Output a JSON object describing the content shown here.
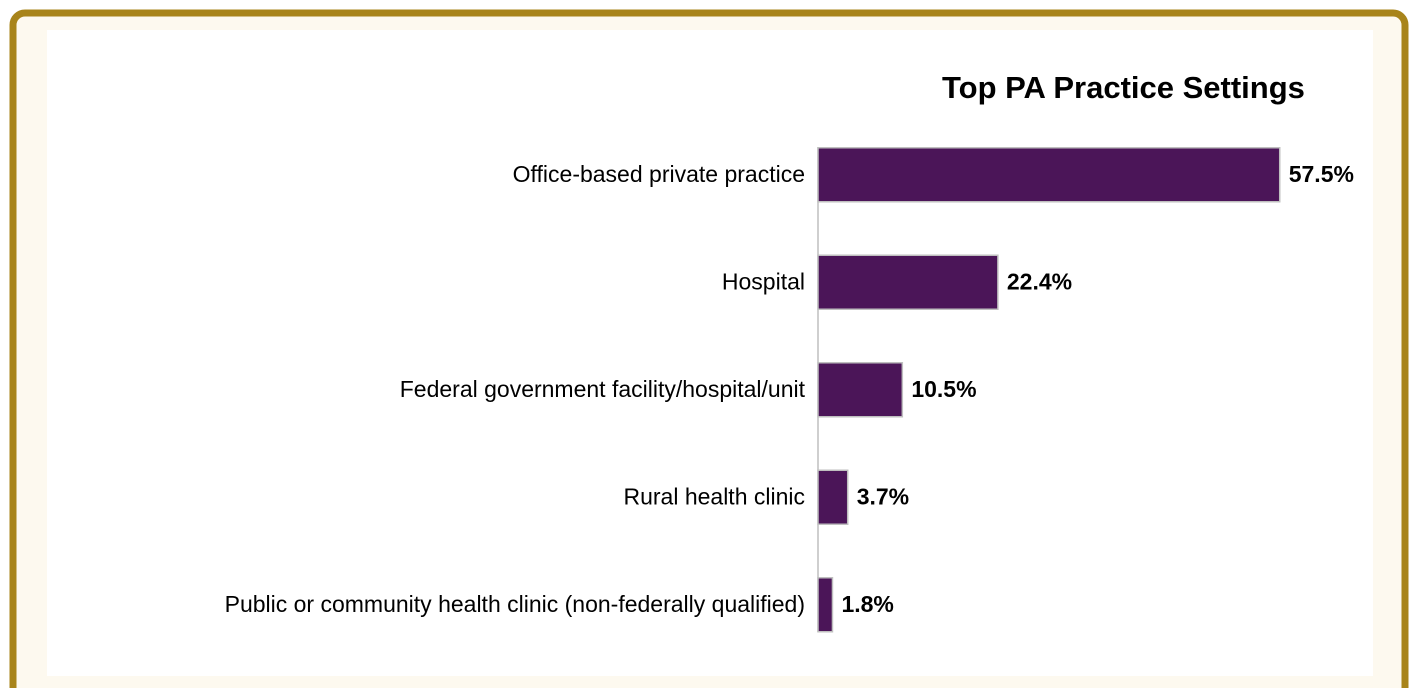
{
  "chart_data": {
    "type": "bar",
    "orientation": "horizontal",
    "title": "Top PA Practice Settings",
    "categories": [
      "Office-based private practice",
      "Hospital",
      "Federal government facility/hospital/unit",
      "Rural health clinic",
      "Public or community health clinic (non-federally qualified)"
    ],
    "values": [
      57.5,
      22.4,
      10.5,
      3.7,
      1.8
    ],
    "value_labels": [
      "57.5%",
      "22.4%",
      "10.5%",
      "3.7%",
      "1.8%"
    ],
    "color": "#4b1558"
  }
}
